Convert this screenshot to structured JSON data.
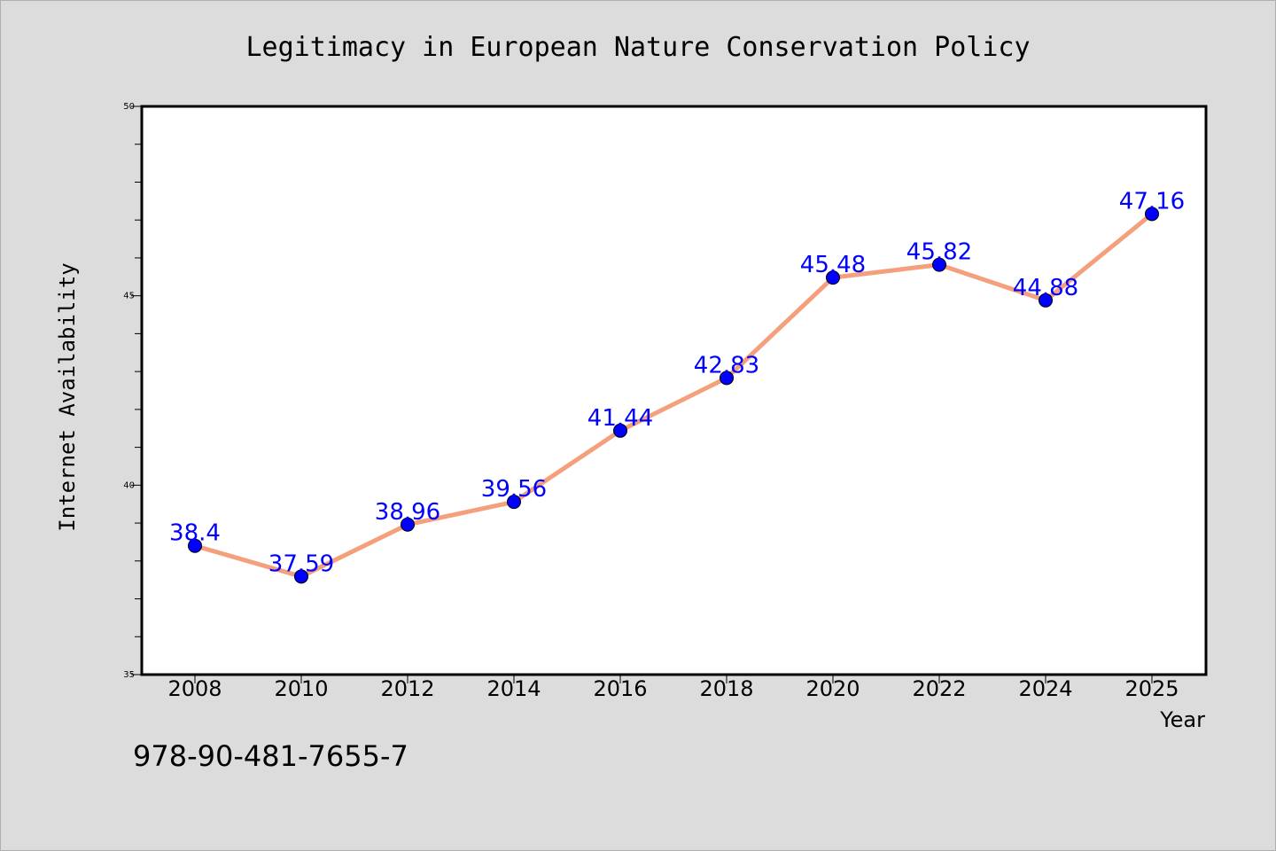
{
  "chart_data": {
    "type": "line",
    "title": "Legitimacy in European Nature Conservation Policy",
    "xlabel": "Year",
    "ylabel": "Internet Availability",
    "x": [
      "2008",
      "2010",
      "2012",
      "2014",
      "2016",
      "2018",
      "2020",
      "2022",
      "2024",
      "2025"
    ],
    "values": [
      38.4,
      37.59,
      38.96,
      39.56,
      41.44,
      42.83,
      45.48,
      45.82,
      44.88,
      47.16
    ],
    "data_labels": [
      "38.4",
      "37.59",
      "38.96",
      "39.56",
      "41.44",
      "42.83",
      "45.48",
      "45.82",
      "44.88",
      "47.16"
    ],
    "ylim": [
      35,
      50
    ],
    "yticks": [
      "35",
      "40",
      "45",
      "50"
    ],
    "grid": false,
    "line_color": "#f4a07c",
    "marker_color": "#0000ff",
    "label_color": "#0000ff"
  },
  "footer": {
    "isbn": "978-90-481-7655-7"
  }
}
